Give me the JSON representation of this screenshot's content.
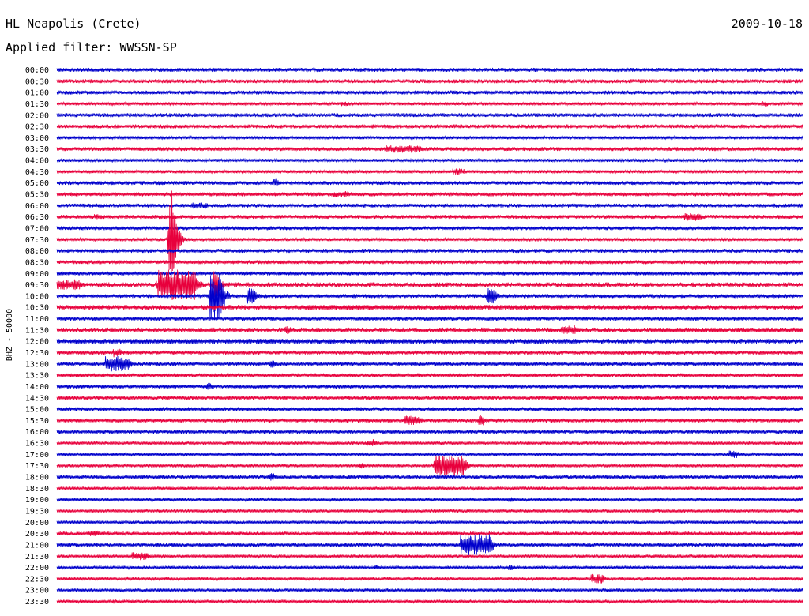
{
  "header": {
    "station": "HL Neapolis (Crete)",
    "date": "2009-10-18",
    "filter": "Applied filter: WWSSN-SP"
  },
  "chart_data": {
    "type": "line",
    "ylabel": "BHZ - 50000",
    "row_labels": [
      "00:00",
      "00:30",
      "01:00",
      "01:30",
      "02:00",
      "02:30",
      "03:00",
      "03:30",
      "04:00",
      "04:30",
      "05:00",
      "05:30",
      "06:00",
      "06:30",
      "07:00",
      "07:30",
      "08:00",
      "08:30",
      "09:00",
      "09:30",
      "10:00",
      "10:30",
      "11:00",
      "11:30",
      "12:00",
      "12:30",
      "13:00",
      "13:30",
      "14:00",
      "14:30",
      "15:00",
      "15:30",
      "16:00",
      "16:30",
      "17:00",
      "17:30",
      "18:00",
      "18:30",
      "19:00",
      "19:30",
      "20:00",
      "20:30",
      "21:00",
      "21:30",
      "22:00",
      "22:30",
      "23:00",
      "23:30"
    ],
    "colors": [
      "#0000cc",
      "#e8003c"
    ],
    "noise_levels": [
      2.5,
      2.5,
      2.5,
      2.0,
      2.5,
      2.5,
      2.0,
      2.5,
      2.0,
      2.0,
      2.5,
      2.5,
      2.5,
      2.5,
      2.5,
      2.0,
      2.5,
      2.5,
      2.5,
      3.0,
      2.5,
      3.0,
      2.5,
      3.0,
      3.0,
      2.5,
      2.5,
      2.5,
      2.5,
      2.5,
      2.5,
      2.5,
      2.5,
      2.0,
      2.0,
      2.0,
      2.5,
      2.0,
      2.0,
      2.0,
      2.0,
      2.5,
      2.5,
      2.0,
      2.0,
      2.0,
      2.0,
      2.0
    ],
    "events": [
      {
        "row": 0,
        "t": 0.005,
        "amp": 2,
        "dur": 0.005
      },
      {
        "row": 3,
        "t": 0.38,
        "amp": 3,
        "dur": 0.01
      },
      {
        "row": 3,
        "t": 0.945,
        "amp": 4,
        "dur": 0.005
      },
      {
        "row": 7,
        "t": 0.44,
        "amp": 5,
        "dur": 0.045
      },
      {
        "row": 9,
        "t": 0.53,
        "amp": 4,
        "dur": 0.015
      },
      {
        "row": 10,
        "t": 0.29,
        "amp": 5,
        "dur": 0.005
      },
      {
        "row": 11,
        "t": 0.37,
        "amp": 4,
        "dur": 0.02
      },
      {
        "row": 12,
        "t": 0.18,
        "amp": 4,
        "dur": 0.02
      },
      {
        "row": 13,
        "t": 0.84,
        "amp": 5,
        "dur": 0.02
      },
      {
        "row": 13,
        "t": 0.05,
        "amp": 4,
        "dur": 0.005
      },
      {
        "row": 15,
        "t": 0.15,
        "amp": 65,
        "dur": 0.005
      },
      {
        "row": 19,
        "t": 0.0,
        "amp": 7,
        "dur": 0.03
      },
      {
        "row": 19,
        "t": 0.135,
        "amp": 20,
        "dur": 0.05
      },
      {
        "row": 19,
        "t": 0.21,
        "amp": 18,
        "dur": 0.005
      },
      {
        "row": 20,
        "t": 0.205,
        "amp": 30,
        "dur": 0.015
      },
      {
        "row": 20,
        "t": 0.255,
        "amp": 10,
        "dur": 0.01
      },
      {
        "row": 20,
        "t": 0.575,
        "amp": 10,
        "dur": 0.01
      },
      {
        "row": 21,
        "t": 0.33,
        "amp": 3,
        "dur": 0.35
      },
      {
        "row": 23,
        "t": 0.305,
        "amp": 6,
        "dur": 0.005
      },
      {
        "row": 23,
        "t": 0.675,
        "amp": 6,
        "dur": 0.02
      },
      {
        "row": 23,
        "t": 0.8,
        "amp": 3,
        "dur": 0.2
      },
      {
        "row": 24,
        "t": 0.0,
        "amp": 3,
        "dur": 0.7
      },
      {
        "row": 25,
        "t": 0.075,
        "amp": 6,
        "dur": 0.01
      },
      {
        "row": 26,
        "t": 0.065,
        "amp": 10,
        "dur": 0.03
      },
      {
        "row": 26,
        "t": 0.285,
        "amp": 5,
        "dur": 0.005
      },
      {
        "row": 26,
        "t": 0.615,
        "amp": 3,
        "dur": 0.005
      },
      {
        "row": 28,
        "t": 0.2,
        "amp": 6,
        "dur": 0.005
      },
      {
        "row": 31,
        "t": 0.465,
        "amp": 6,
        "dur": 0.02
      },
      {
        "row": 31,
        "t": 0.565,
        "amp": 8,
        "dur": 0.005
      },
      {
        "row": 33,
        "t": 0.415,
        "amp": 5,
        "dur": 0.01
      },
      {
        "row": 34,
        "t": 0.9,
        "amp": 5,
        "dur": 0.01
      },
      {
        "row": 35,
        "t": 0.505,
        "amp": 13,
        "dur": 0.04
      },
      {
        "row": 35,
        "t": 0.405,
        "amp": 4,
        "dur": 0.005
      },
      {
        "row": 36,
        "t": 0.285,
        "amp": 5,
        "dur": 0.005
      },
      {
        "row": 38,
        "t": 0.605,
        "amp": 3,
        "dur": 0.005
      },
      {
        "row": 41,
        "t": 0.045,
        "amp": 4,
        "dur": 0.01
      },
      {
        "row": 42,
        "t": 0.54,
        "amp": 14,
        "dur": 0.04
      },
      {
        "row": 43,
        "t": 0.1,
        "amp": 5,
        "dur": 0.02
      },
      {
        "row": 44,
        "t": 0.425,
        "amp": 3,
        "dur": 0.005
      },
      {
        "row": 44,
        "t": 0.605,
        "amp": 4,
        "dur": 0.005
      },
      {
        "row": 45,
        "t": 0.715,
        "amp": 6,
        "dur": 0.015
      },
      {
        "row": 47,
        "t": 0.075,
        "amp": 3,
        "dur": 0.005
      }
    ]
  }
}
